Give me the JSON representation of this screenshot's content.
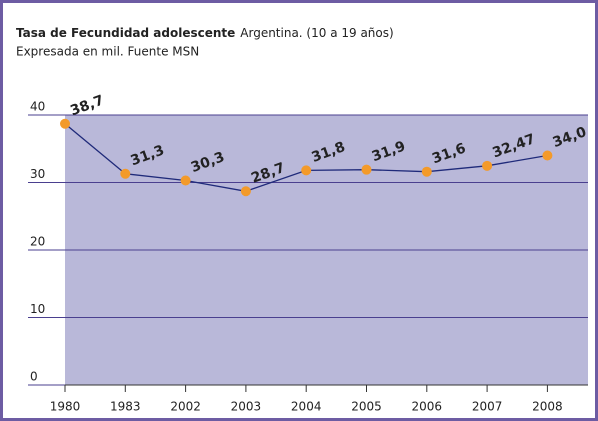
{
  "chart_data": {
    "type": "line",
    "title": "Tasa de Fecundidad adolescente",
    "subtitle": "Argentina. (10 a 19 años)",
    "note": "Expresada en mil. Fuente MSN",
    "categories": [
      "1980",
      "1983",
      "2002",
      "2003",
      "2004",
      "2005",
      "2006",
      "2007",
      "2008"
    ],
    "series": [
      {
        "name": "Tasa",
        "color": "#1f2a7a",
        "marker_color": "#f39a2a",
        "values": [
          38.7,
          31.3,
          30.3,
          28.7,
          31.8,
          31.9,
          31.6,
          32.47,
          34.0
        ],
        "value_labels": [
          "38,7",
          "31,3",
          "30,3",
          "28,7",
          "31,8",
          "31,9",
          "31,6",
          "32,47",
          "34,0"
        ]
      }
    ],
    "ylim": [
      0,
      40
    ],
    "yticks": [
      0,
      10,
      20,
      30,
      40
    ],
    "grid": true,
    "plot_color": "#b9b8d9",
    "frame_color": "#6d5ca3"
  }
}
